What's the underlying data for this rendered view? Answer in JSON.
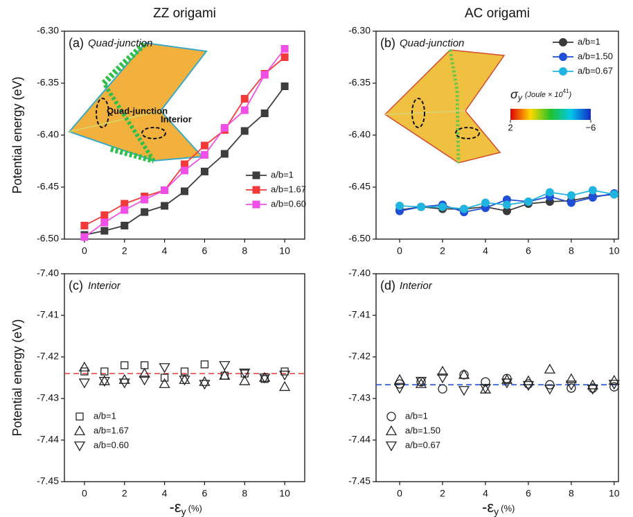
{
  "chart_data": [
    {
      "type": "line",
      "title": "ZZ origami",
      "panel_label": "(a)",
      "subtitle": "Quad-junction",
      "ylabel": "Potential energy (eV)",
      "x": [
        0,
        1,
        2,
        3,
        4,
        5,
        6,
        7,
        8,
        9,
        10
      ],
      "xlim": [
        -1,
        11
      ],
      "xticks": [
        0,
        2,
        4,
        6,
        8,
        10
      ],
      "ylim": [
        -6.5,
        -6.3
      ],
      "yticks": [
        {
          "value": -6.5,
          "label": "-6.50"
        },
        -6.45,
        {
          "value": -6.4,
          "label": "-6.40"
        },
        -6.35,
        {
          "value": -6.3,
          "label": "-6.30"
        }
      ],
      "legend": "lower right",
      "annotations": [
        "Quad-junction",
        "Interior"
      ],
      "series": [
        {
          "name": "a/b=1",
          "color": "#3d3d3d",
          "marker": "square",
          "values": [
            -6.496,
            -6.492,
            -6.487,
            -6.474,
            -6.468,
            -6.454,
            -6.435,
            -6.418,
            -6.396,
            -6.379,
            -6.353
          ]
        },
        {
          "name": "a/b=1.67",
          "color": "#f23a3a",
          "marker": "square",
          "values": [
            -6.487,
            -6.477,
            -6.466,
            -6.459,
            -6.453,
            -6.428,
            -6.41,
            -6.395,
            -6.365,
            -6.341,
            -6.325
          ]
        },
        {
          "name": "a/b=0.60",
          "color": "#ef4fe6",
          "marker": "square",
          "values": [
            -6.498,
            -6.484,
            -6.472,
            -6.462,
            -6.453,
            -6.434,
            -6.419,
            -6.393,
            -6.376,
            -6.342,
            -6.317
          ]
        }
      ]
    },
    {
      "type": "line",
      "title": "AC origami",
      "panel_label": "(b)",
      "subtitle": "Quad-junction",
      "x": [
        0,
        1,
        2,
        3,
        4,
        5,
        6,
        7,
        8,
        9,
        10
      ],
      "xlim": [
        -1.1,
        10.2
      ],
      "xticks": [
        0,
        2,
        4,
        6,
        8,
        10
      ],
      "ylim": [
        -6.5,
        -6.3
      ],
      "yticks": [
        {
          "value": -6.5,
          "label": "-6.50"
        },
        -6.45,
        {
          "value": -6.4,
          "label": "-6.40"
        },
        -6.35,
        {
          "value": -6.3,
          "label": "-6.30"
        }
      ],
      "legend": "upper right",
      "colorbar": {
        "symbol": "σ",
        "symbol_sub": "y",
        "unit": "(Joule × 10",
        "unit_exp": "41",
        "unit_close": ")",
        "ticks": [
          2,
          {
            "value": -6,
            "label": "−6"
          }
        ]
      },
      "series": [
        {
          "name": "a/b=1",
          "color": "#3a3a3a",
          "marker": "circle",
          "values": [
            -6.472,
            -6.469,
            -6.471,
            -6.471,
            -6.469,
            -6.473,
            -6.466,
            -6.464,
            -6.463,
            -6.459,
            -6.457
          ]
        },
        {
          "name": "a/b=1.50",
          "color": "#1f4fd6",
          "marker": "circle",
          "values": [
            -6.473,
            -6.469,
            -6.467,
            -6.474,
            -6.47,
            -6.462,
            -6.464,
            -6.459,
            -6.465,
            -6.46,
            -6.456
          ]
        },
        {
          "name": "a/b=0.67",
          "color": "#1fb5e0",
          "marker": "circle",
          "values": [
            -6.468,
            -6.469,
            -6.469,
            -6.471,
            -6.465,
            -6.467,
            -6.464,
            -6.455,
            -6.458,
            -6.453,
            -6.457
          ]
        }
      ]
    },
    {
      "type": "scatter",
      "panel_label": "(c)",
      "subtitle": "Interior",
      "ylabel": "Potential energy (eV)",
      "xlabel": {
        "main": "-ε",
        "sub": "y",
        "unit": "(%)"
      },
      "x": [
        0,
        1,
        2,
        3,
        4,
        5,
        6,
        7,
        8,
        9,
        10
      ],
      "xlim": [
        -1,
        11
      ],
      "xticks": [
        0,
        2,
        4,
        6,
        8,
        10
      ],
      "ylim": [
        -7.45,
        -7.4
      ],
      "yticks": [
        -7.45,
        -7.44,
        -7.43,
        -7.42,
        -7.41,
        {
          "value": -7.4,
          "label": "-7.40"
        }
      ],
      "legend": "lower left",
      "reference_line": -7.424,
      "reference_color": "#e53935",
      "series": [
        {
          "name": "a/b=1",
          "color": "#222222",
          "marker": "square",
          "values": [
            -7.4235,
            -7.4235,
            -7.422,
            -7.422,
            -7.425,
            -7.4235,
            -7.4218,
            -7.4245,
            -7.424,
            -7.4253,
            -7.4235
          ]
        },
        {
          "name": "a/b=1.67",
          "color": "#222222",
          "marker": "triangle-up",
          "values": [
            -7.4225,
            -7.4258,
            -7.4255,
            -7.424,
            -7.4265,
            -7.4255,
            -7.426,
            -7.4245,
            -7.4258,
            -7.425,
            -7.4272
          ]
        },
        {
          "name": "a/b=0.60",
          "color": "#222222",
          "marker": "triangle-down",
          "values": [
            -7.4262,
            -7.4258,
            -7.4262,
            -7.4255,
            -7.4225,
            -7.4255,
            -7.4265,
            -7.422,
            -7.4238,
            -7.425,
            -7.4243
          ]
        }
      ]
    },
    {
      "type": "scatter",
      "panel_label": "(d)",
      "subtitle": "Interior",
      "xlabel": {
        "main": "-ε",
        "sub": "y",
        "unit": "(%)"
      },
      "x": [
        0,
        1,
        2,
        3,
        4,
        5,
        6,
        7,
        8,
        9,
        10
      ],
      "xlim": [
        -1.1,
        10.2
      ],
      "xticks": [
        0,
        2,
        4,
        6,
        8,
        10
      ],
      "ylim": [
        -7.45,
        -7.4
      ],
      "yticks": [
        -7.45,
        -7.44,
        -7.43,
        -7.42,
        -7.41,
        {
          "value": -7.4,
          "label": "-7.40"
        }
      ],
      "legend": "lower left",
      "reference_line": -7.4267,
      "reference_color": "#2454d6",
      "series": [
        {
          "name": "a/b=1",
          "color": "#222222",
          "marker": "circle",
          "values": [
            -7.4265,
            -7.426,
            -7.4277,
            -7.4243,
            -7.426,
            -7.4252,
            -7.4265,
            -7.4267,
            -7.4275,
            -7.4275,
            -7.4272
          ]
        },
        {
          "name": "a/b=1.50",
          "color": "#222222",
          "marker": "triangle-up",
          "values": [
            -7.4255,
            -7.4265,
            -7.4235,
            -7.4243,
            -7.4278,
            -7.4255,
            -7.4258,
            -7.423,
            -7.4253,
            -7.4268,
            -7.4257
          ]
        },
        {
          "name": "a/b=0.67",
          "color": "#222222",
          "marker": "triangle-down",
          "values": [
            -7.4275,
            -7.4258,
            -7.425,
            -7.428,
            -7.4275,
            -7.4262,
            -7.4268,
            -7.4277,
            -7.4267,
            -7.4277,
            -7.4265
          ]
        }
      ]
    }
  ]
}
